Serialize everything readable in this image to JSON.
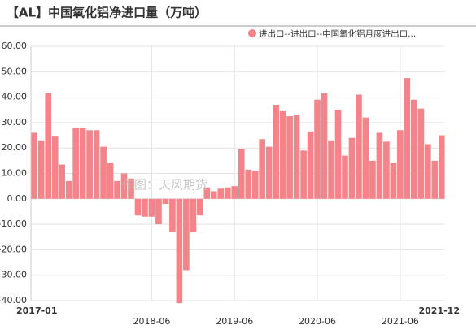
{
  "chart_data": {
    "type": "bar",
    "title": "【AL】中国氧化铝净进口量（万吨）",
    "watermark": "作图：天风期货",
    "categories": [
      "2017-01",
      null,
      null,
      null,
      null,
      null,
      null,
      null,
      null,
      null,
      null,
      null,
      null,
      null,
      null,
      null,
      null,
      "2018-06",
      null,
      null,
      null,
      null,
      null,
      null,
      null,
      null,
      null,
      null,
      null,
      "2019-06",
      null,
      null,
      null,
      null,
      null,
      null,
      null,
      null,
      null,
      null,
      null,
      "2020-06",
      null,
      null,
      null,
      null,
      null,
      null,
      null,
      null,
      null,
      null,
      null,
      "2021-06",
      null,
      null,
      null,
      null,
      null,
      "2021-12"
    ],
    "series": [
      {
        "name": "进出口--进出口--中国氧化铝月度进出口...",
        "color": "#f4838a",
        "values": [
          26,
          23,
          41.5,
          24.5,
          13.5,
          7,
          28,
          28,
          27,
          27,
          20.5,
          14,
          7,
          10,
          8,
          -6.5,
          -7,
          -7,
          -10,
          -2,
          -13,
          -41,
          -28,
          -13,
          -6.5,
          4.5,
          3,
          4,
          4.5,
          5,
          19.5,
          11.5,
          11,
          23.5,
          20.5,
          37,
          34.5,
          32.5,
          33,
          19,
          26.5,
          39,
          41.5,
          23,
          35,
          17,
          24,
          41,
          32,
          15,
          26,
          22.5,
          14,
          27,
          47.5,
          39,
          35.5,
          21.5,
          15,
          25
        ]
      }
    ],
    "ylim": [
      -40,
      60
    ],
    "yticks": [
      {
        "value": -40,
        "label": "-40.00"
      },
      {
        "value": -30,
        "label": "-30.00"
      },
      {
        "value": -20,
        "label": "-20.00"
      },
      {
        "value": -10,
        "label": "-10.00"
      },
      {
        "value": 0,
        "label": "0.00"
      },
      {
        "value": 10,
        "label": "10.00"
      },
      {
        "value": 20,
        "label": "20.00"
      },
      {
        "value": 30,
        "label": "30.00"
      },
      {
        "value": 40,
        "label": "40.00"
      },
      {
        "value": 50,
        "label": "50.00"
      },
      {
        "value": 60,
        "label": "60.00"
      }
    ],
    "grid": true
  }
}
